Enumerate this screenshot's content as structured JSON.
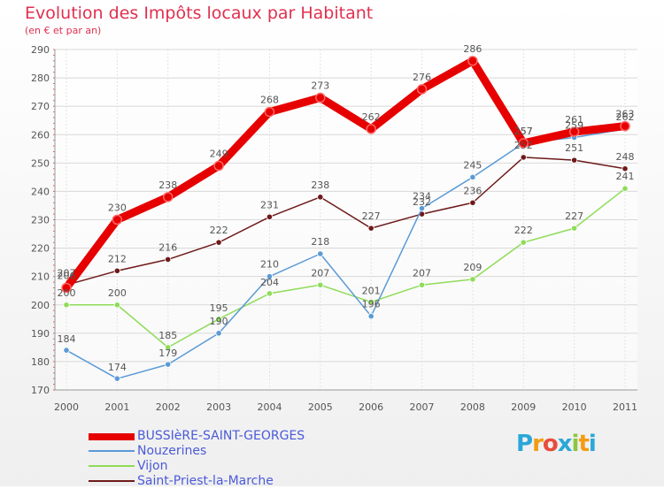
{
  "header": {
    "title": "Evolution des Impôts locaux par Habitant",
    "subtitle": "(en € et par an)"
  },
  "chart_data": {
    "type": "line",
    "title": "Evolution des Impôts locaux par Habitant",
    "subtitle": "(en € et par an)",
    "xlabel": "",
    "ylabel": "",
    "categories": [
      "2000",
      "2001",
      "2002",
      "2003",
      "2004",
      "2005",
      "2006",
      "2007",
      "2008",
      "2009",
      "2010",
      "2011"
    ],
    "ylim": [
      170,
      290
    ],
    "yticks": [
      170,
      180,
      190,
      200,
      210,
      220,
      230,
      240,
      250,
      260,
      270,
      280,
      290
    ],
    "grid": true,
    "legend_position": "bottom-left",
    "series": [
      {
        "name": "Saint-Priest-la-Marche",
        "color": "#6e1a1a",
        "values": [
          207,
          212,
          216,
          222,
          231,
          238,
          227,
          232,
          236,
          252,
          251,
          248
        ]
      },
      {
        "name": "Vijon",
        "color": "#8edc58",
        "values": [
          200,
          200,
          185,
          195,
          204,
          207,
          201,
          207,
          209,
          222,
          227,
          241
        ]
      },
      {
        "name": "Nouzerines",
        "color": "#5a9ad6",
        "values": [
          184,
          174,
          179,
          190,
          210,
          218,
          196,
          234,
          245,
          257,
          259,
          262
        ]
      },
      {
        "name": "BUSSIèRE-SAINT-GEORGES",
        "color": "#e60000",
        "values": [
          206,
          230,
          238,
          249,
          268,
          273,
          262,
          276,
          286,
          257,
          261,
          263
        ]
      }
    ]
  },
  "legend": {
    "items": [
      {
        "label": "BUSSIèRE-SAINT-GEORGES",
        "color": "#e60000"
      },
      {
        "label": "Nouzerines",
        "color": "#5a9ad6"
      },
      {
        "label": "Vijon",
        "color": "#8edc58"
      },
      {
        "label": "Saint-Priest-la-Marche",
        "color": "#6e1a1a"
      }
    ]
  },
  "logo": {
    "letters": [
      "P",
      "r",
      "o",
      "x",
      "i",
      "t",
      "i"
    ],
    "colors": [
      "#2aa7d8",
      "#f39c12",
      "#e84c3d",
      "#2aa7d8",
      "#8dc63f",
      "#f39c12",
      "#2aa7d8"
    ]
  }
}
